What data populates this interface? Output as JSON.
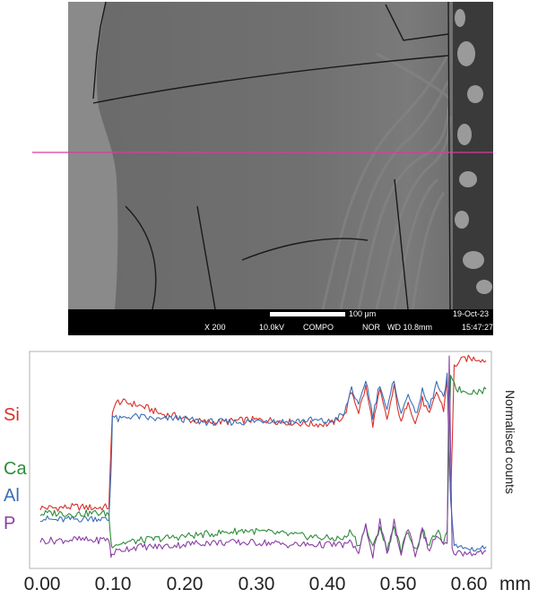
{
  "sem_image": {
    "scale_bar_label": "100 μm",
    "date": "19-Oct-23",
    "magnification": "X 200",
    "voltage": "10.0kV",
    "mode": "COMPO",
    "scan": "NOR",
    "working_distance": "WD 10.8mm",
    "time": "15:47:27",
    "line_color": "#e0389a"
  },
  "chart_data": {
    "type": "line",
    "title": "",
    "xlabel": "mm",
    "ylabel": "Normalised counts",
    "xlim": [
      -0.01,
      0.635
    ],
    "ylim": [
      0,
      1
    ],
    "x_ticks": [
      "0.00",
      "0.10",
      "0.20",
      "0.30",
      "0.40",
      "0.50",
      "0.60"
    ],
    "grid": false,
    "legend": "left",
    "series": [
      {
        "name": "Si",
        "color": "#d9302a",
        "points": [
          [
            0.0,
            0.27
          ],
          [
            0.02,
            0.27
          ],
          [
            0.05,
            0.275
          ],
          [
            0.08,
            0.27
          ],
          [
            0.097,
            0.275
          ],
          [
            0.1,
            0.56
          ],
          [
            0.102,
            0.75
          ],
          [
            0.11,
            0.79
          ],
          [
            0.13,
            0.78
          ],
          [
            0.15,
            0.76
          ],
          [
            0.17,
            0.73
          ],
          [
            0.19,
            0.72
          ],
          [
            0.21,
            0.7
          ],
          [
            0.23,
            0.69
          ],
          [
            0.26,
            0.69
          ],
          [
            0.29,
            0.7
          ],
          [
            0.32,
            0.7
          ],
          [
            0.35,
            0.69
          ],
          [
            0.38,
            0.68
          ],
          [
            0.41,
            0.68
          ],
          [
            0.43,
            0.72
          ],
          [
            0.44,
            0.84
          ],
          [
            0.45,
            0.74
          ],
          [
            0.46,
            0.86
          ],
          [
            0.47,
            0.68
          ],
          [
            0.48,
            0.84
          ],
          [
            0.49,
            0.7
          ],
          [
            0.5,
            0.86
          ],
          [
            0.51,
            0.68
          ],
          [
            0.52,
            0.8
          ],
          [
            0.53,
            0.68
          ],
          [
            0.54,
            0.8
          ],
          [
            0.55,
            0.72
          ],
          [
            0.56,
            0.84
          ],
          [
            0.57,
            0.75
          ],
          [
            0.575,
            0.9
          ],
          [
            0.58,
            0.3
          ],
          [
            0.585,
            0.96
          ],
          [
            0.59,
            0.98
          ],
          [
            0.6,
            1.0
          ],
          [
            0.62,
            1.0
          ],
          [
            0.63,
            0.99
          ]
        ]
      },
      {
        "name": "Al",
        "color": "#3a6fb6",
        "points": [
          [
            0.0,
            0.22
          ],
          [
            0.02,
            0.21
          ],
          [
            0.05,
            0.215
          ],
          [
            0.08,
            0.22
          ],
          [
            0.097,
            0.21
          ],
          [
            0.1,
            0.45
          ],
          [
            0.102,
            0.72
          ],
          [
            0.11,
            0.7
          ],
          [
            0.13,
            0.72
          ],
          [
            0.15,
            0.71
          ],
          [
            0.17,
            0.7
          ],
          [
            0.19,
            0.71
          ],
          [
            0.21,
            0.7
          ],
          [
            0.23,
            0.69
          ],
          [
            0.26,
            0.69
          ],
          [
            0.29,
            0.69
          ],
          [
            0.32,
            0.7
          ],
          [
            0.35,
            0.69
          ],
          [
            0.38,
            0.7
          ],
          [
            0.41,
            0.69
          ],
          [
            0.43,
            0.73
          ],
          [
            0.44,
            0.86
          ],
          [
            0.45,
            0.76
          ],
          [
            0.46,
            0.9
          ],
          [
            0.47,
            0.72
          ],
          [
            0.48,
            0.88
          ],
          [
            0.49,
            0.74
          ],
          [
            0.5,
            0.9
          ],
          [
            0.51,
            0.72
          ],
          [
            0.52,
            0.84
          ],
          [
            0.53,
            0.72
          ],
          [
            0.54,
            0.84
          ],
          [
            0.55,
            0.76
          ],
          [
            0.56,
            0.88
          ],
          [
            0.57,
            0.8
          ],
          [
            0.575,
            0.92
          ],
          [
            0.58,
            0.3
          ],
          [
            0.585,
            0.1
          ],
          [
            0.59,
            0.08
          ],
          [
            0.6,
            0.07
          ],
          [
            0.62,
            0.07
          ],
          [
            0.63,
            0.08
          ]
        ]
      },
      {
        "name": "Ca",
        "color": "#2e8c3a",
        "points": [
          [
            0.0,
            0.24
          ],
          [
            0.02,
            0.245
          ],
          [
            0.05,
            0.24
          ],
          [
            0.08,
            0.245
          ],
          [
            0.097,
            0.24
          ],
          [
            0.1,
            0.1
          ],
          [
            0.102,
            0.09
          ],
          [
            0.12,
            0.1
          ],
          [
            0.14,
            0.11
          ],
          [
            0.17,
            0.12
          ],
          [
            0.2,
            0.13
          ],
          [
            0.23,
            0.14
          ],
          [
            0.26,
            0.15
          ],
          [
            0.29,
            0.16
          ],
          [
            0.32,
            0.15
          ],
          [
            0.35,
            0.14
          ],
          [
            0.38,
            0.13
          ],
          [
            0.41,
            0.12
          ],
          [
            0.43,
            0.12
          ],
          [
            0.44,
            0.16
          ],
          [
            0.45,
            0.08
          ],
          [
            0.46,
            0.18
          ],
          [
            0.47,
            0.07
          ],
          [
            0.48,
            0.18
          ],
          [
            0.49,
            0.06
          ],
          [
            0.5,
            0.18
          ],
          [
            0.51,
            0.06
          ],
          [
            0.52,
            0.16
          ],
          [
            0.53,
            0.06
          ],
          [
            0.54,
            0.16
          ],
          [
            0.55,
            0.08
          ],
          [
            0.56,
            0.16
          ],
          [
            0.57,
            0.1
          ],
          [
            0.575,
            0.14
          ],
          [
            0.58,
            0.93
          ],
          [
            0.585,
            0.88
          ],
          [
            0.59,
            0.85
          ],
          [
            0.6,
            0.84
          ],
          [
            0.62,
            0.84
          ],
          [
            0.63,
            0.85
          ]
        ]
      },
      {
        "name": "P",
        "color": "#8a3ea5",
        "points": [
          [
            0.0,
            0.11
          ],
          [
            0.02,
            0.11
          ],
          [
            0.05,
            0.115
          ],
          [
            0.08,
            0.11
          ],
          [
            0.097,
            0.12
          ],
          [
            0.1,
            0.03
          ],
          [
            0.102,
            0.05
          ],
          [
            0.12,
            0.07
          ],
          [
            0.14,
            0.08
          ],
          [
            0.17,
            0.08
          ],
          [
            0.2,
            0.09
          ],
          [
            0.23,
            0.1
          ],
          [
            0.26,
            0.1
          ],
          [
            0.29,
            0.1
          ],
          [
            0.32,
            0.1
          ],
          [
            0.35,
            0.09
          ],
          [
            0.38,
            0.09
          ],
          [
            0.41,
            0.09
          ],
          [
            0.43,
            0.09
          ],
          [
            0.44,
            0.1
          ],
          [
            0.45,
            0.05
          ],
          [
            0.46,
            0.18
          ],
          [
            0.47,
            0.04
          ],
          [
            0.48,
            0.2
          ],
          [
            0.49,
            0.04
          ],
          [
            0.5,
            0.2
          ],
          [
            0.51,
            0.04
          ],
          [
            0.52,
            0.18
          ],
          [
            0.53,
            0.04
          ],
          [
            0.54,
            0.16
          ],
          [
            0.55,
            0.06
          ],
          [
            0.56,
            0.14
          ],
          [
            0.57,
            0.08
          ],
          [
            0.575,
            0.1
          ],
          [
            0.578,
            1.0
          ],
          [
            0.582,
            0.06
          ],
          [
            0.59,
            0.05
          ],
          [
            0.6,
            0.05
          ],
          [
            0.62,
            0.05
          ],
          [
            0.63,
            0.06
          ]
        ]
      }
    ]
  }
}
